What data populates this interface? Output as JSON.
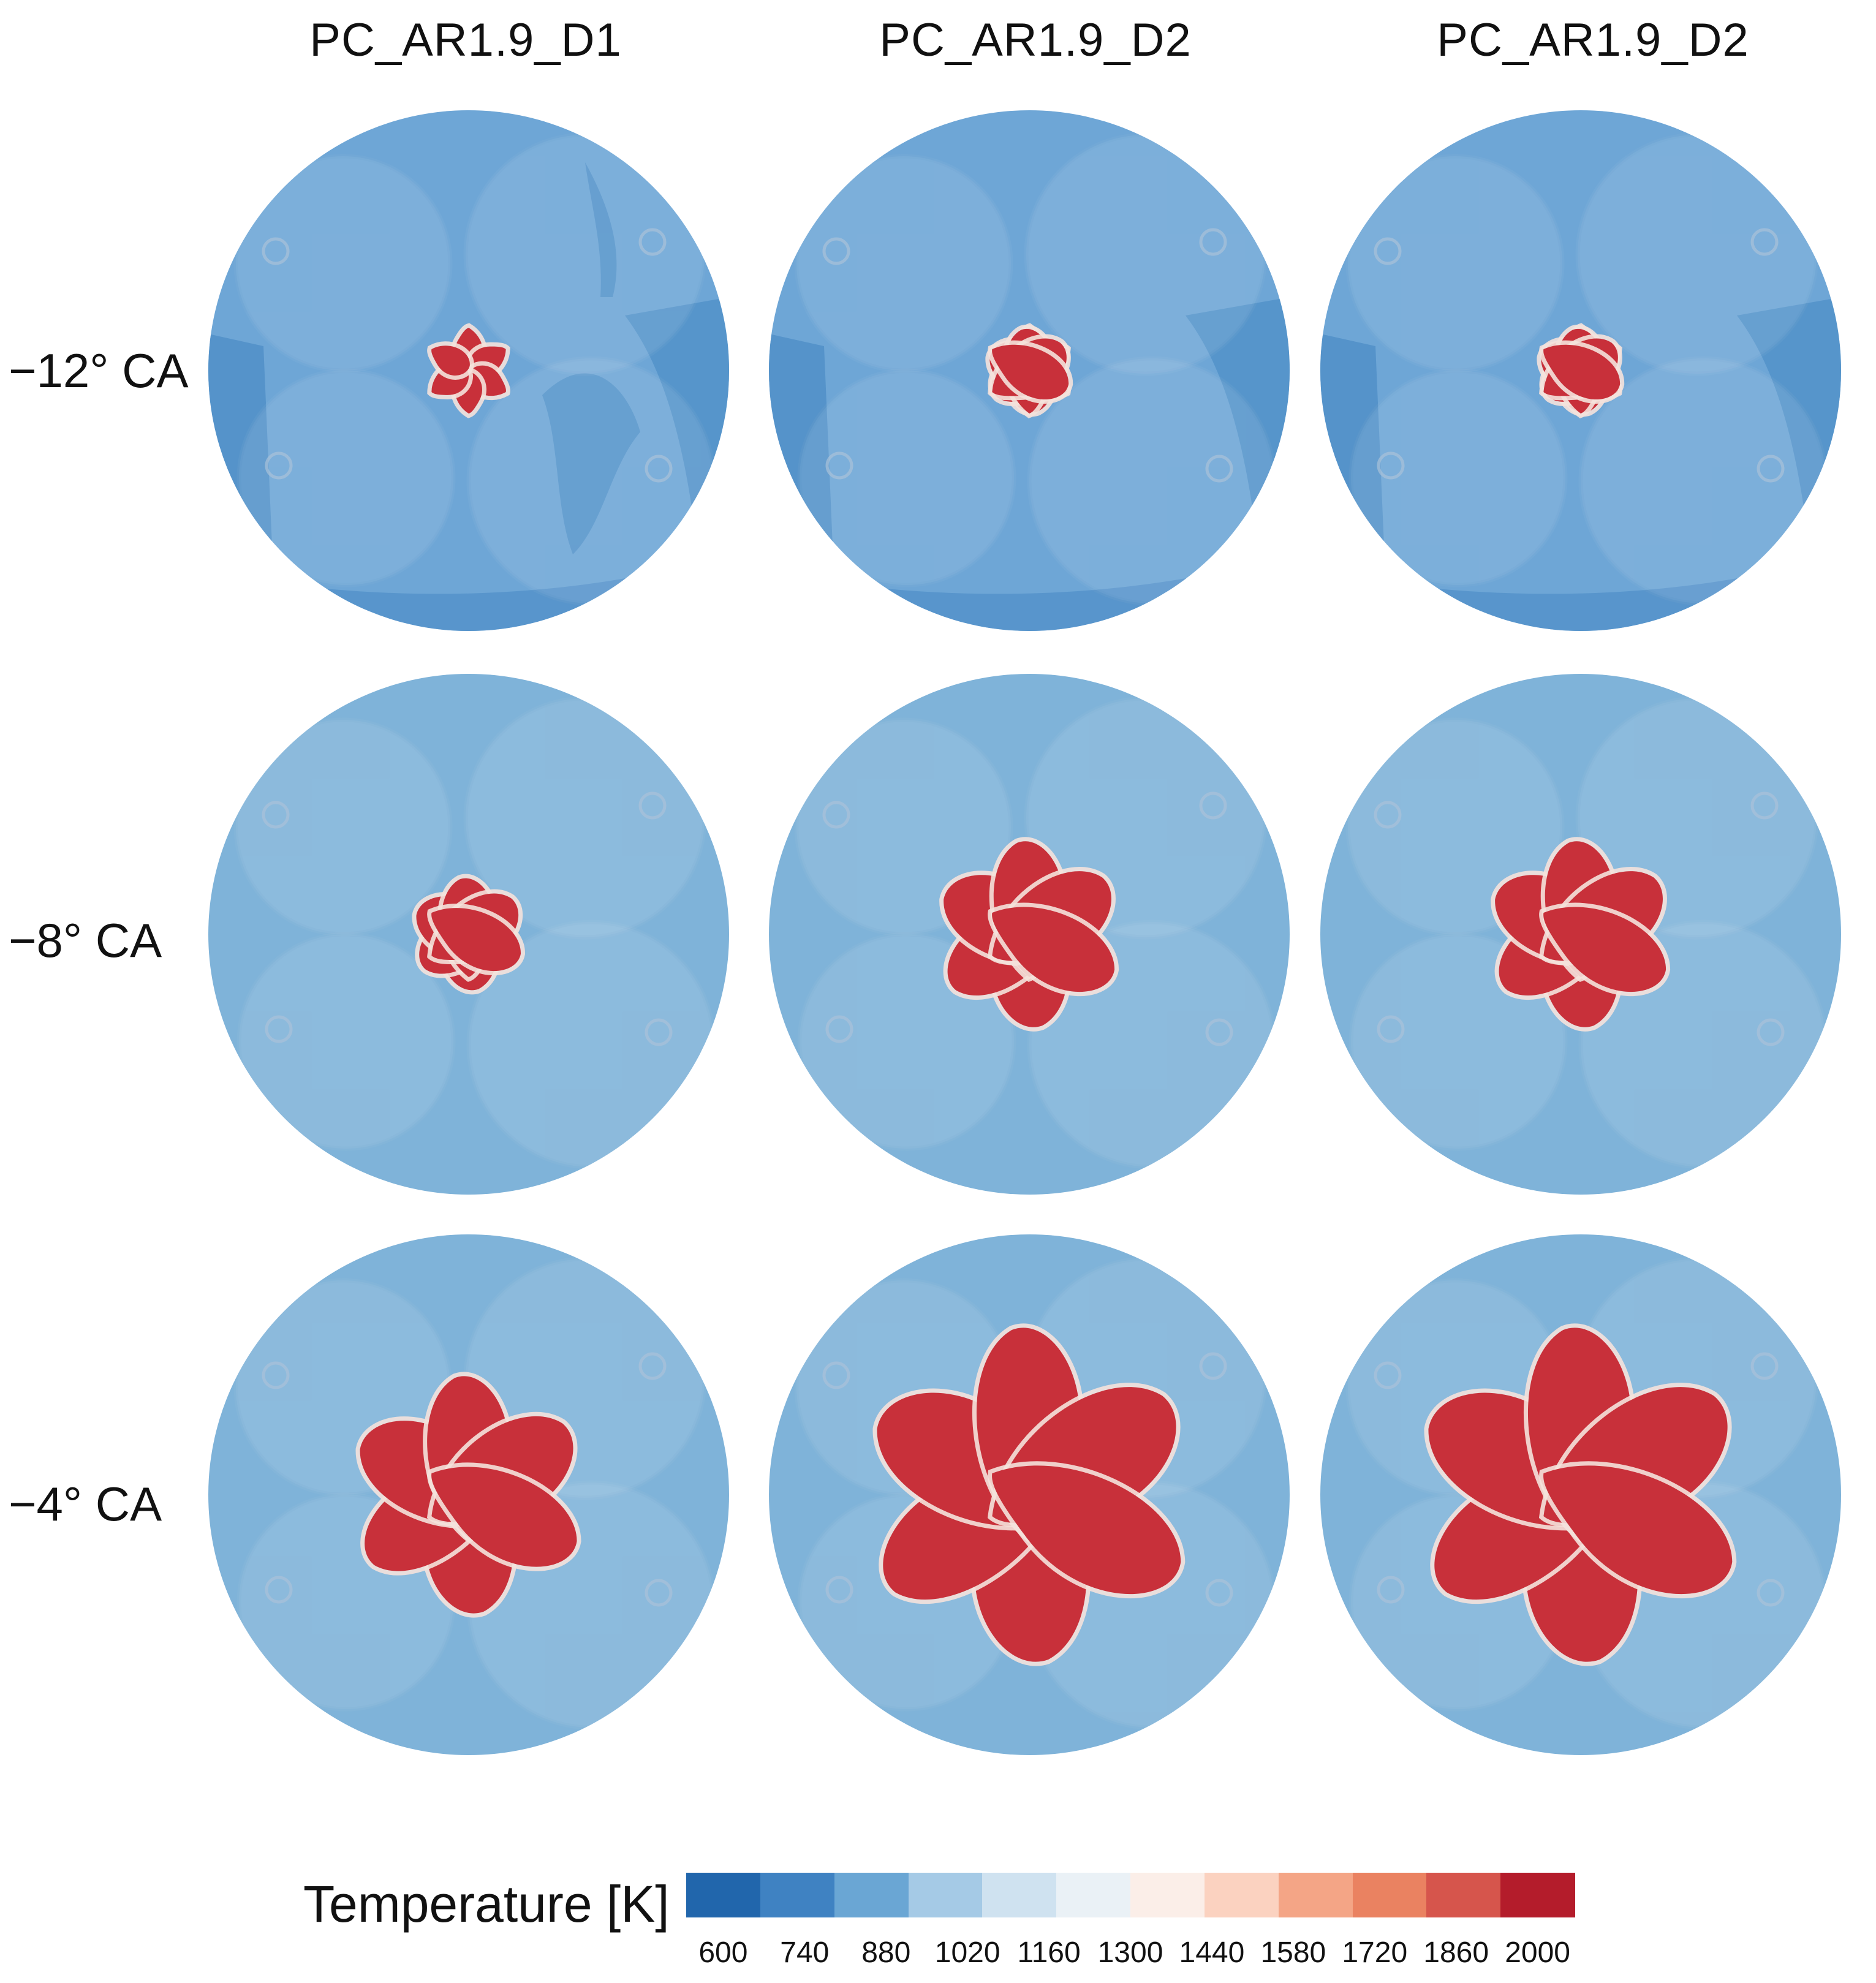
{
  "columns": [
    {
      "title": "PC_AR1.9_D1"
    },
    {
      "title": "PC_AR1.9_D2"
    },
    {
      "title": "PC_AR1.9_D2"
    }
  ],
  "rows": [
    {
      "label": "−12° CA"
    },
    {
      "label": "−8° CA"
    },
    {
      "label": "−4° CA"
    }
  ],
  "flame_size": [
    [
      0.12,
      0.42,
      0.42
    ],
    [
      0.52,
      0.78,
      0.78
    ],
    [
      0.96,
      1.3,
      1.3
    ]
  ],
  "legend": {
    "title": "Temperature [K]",
    "ticks": [
      "600",
      "740",
      "880",
      "1020",
      "1160",
      "1300",
      "1440",
      "1580",
      "1720",
      "1860",
      "2000"
    ],
    "colors": [
      "#2166ac",
      "#3f82c2",
      "#6aa6d4",
      "#a5cae6",
      "#cfe2f0",
      "#eaf1f6",
      "#fbeee8",
      "#fbd2c0",
      "#f4a586",
      "#ea8261",
      "#d6554c",
      "#b41c2b"
    ]
  },
  "colors": {
    "cold_background": "#7fb3d9",
    "cold_background_early": "#6ea6d6",
    "cold_patch": "#4f8fc7",
    "hot_flame": "#c8303a",
    "flame_edge": "#f4e2dc"
  }
}
